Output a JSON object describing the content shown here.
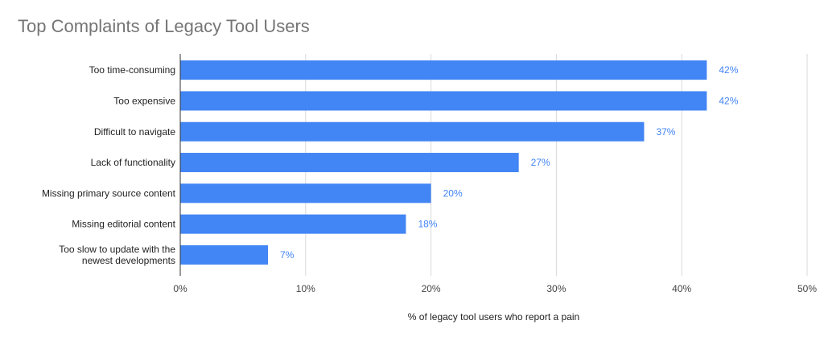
{
  "chart_data": {
    "type": "bar",
    "orientation": "horizontal",
    "title": "Top Complaints of Legacy Tool Users",
    "xlabel": "% of legacy tool users who report a pain",
    "ylabel": "",
    "categories": [
      [
        "Too time-consuming"
      ],
      [
        "Too expensive"
      ],
      [
        "Difficult to navigate"
      ],
      [
        "Lack of functionality"
      ],
      [
        "Missing primary source content"
      ],
      [
        "Missing editorial content"
      ],
      [
        "Too slow to update with the",
        "newest developments"
      ]
    ],
    "values": [
      42,
      42,
      37,
      27,
      20,
      18,
      7
    ],
    "data_labels": [
      "42%",
      "42%",
      "37%",
      "27%",
      "20%",
      "18%",
      "7%"
    ],
    "xlim": [
      0,
      50
    ],
    "x_ticks": [
      0,
      10,
      20,
      30,
      40,
      50
    ],
    "x_tick_labels": [
      "0%",
      "10%",
      "20%",
      "30%",
      "40%",
      "50%"
    ],
    "grid": true,
    "bar_color": "#4285f4",
    "label_color": "#4285f4"
  }
}
